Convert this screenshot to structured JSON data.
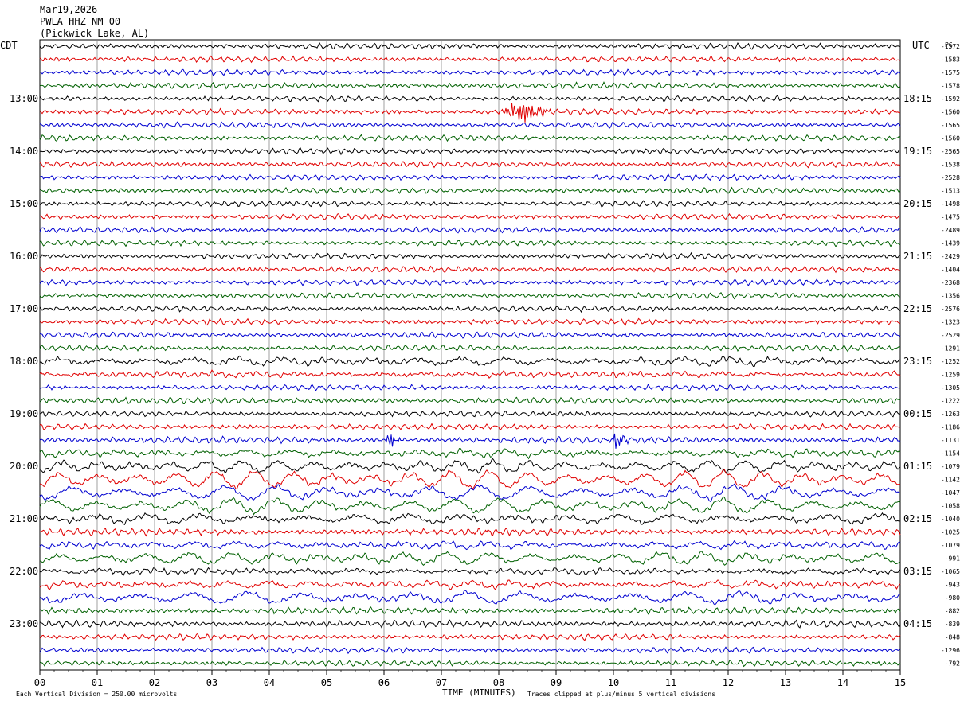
{
  "header": {
    "date": "Mar19,2026",
    "station": "PWLA HHZ NM 00",
    "location": "(Pickwick Lake, AL)"
  },
  "left_timezone": "CDT",
  "right_timezone": "UTC",
  "right_corner_label": "PG",
  "footer": {
    "scale_note": "Each Vertical Division =  250.00 microvolts",
    "clip_note": "Traces clipped at plus/minus 5 vertical divisions",
    "xlabel": "TIME (MINUTES)"
  },
  "chart_data": {
    "type": "line",
    "xlabel": "TIME (MINUTES)",
    "x_ticks": [
      "00",
      "01",
      "02",
      "03",
      "04",
      "05",
      "06",
      "07",
      "08",
      "09",
      "10",
      "11",
      "12",
      "13",
      "14",
      "15"
    ],
    "xlim": [
      0,
      15
    ],
    "rows": 48,
    "trace_colors": [
      "#000000",
      "#e00000",
      "#0000d0",
      "#006000"
    ],
    "left_hour_labels": [
      "13:00",
      "14:00",
      "15:00",
      "16:00",
      "17:00",
      "18:00",
      "19:00",
      "20:00",
      "21:00",
      "22:00",
      "23:00"
    ],
    "left_hour_rows": [
      4,
      8,
      12,
      16,
      20,
      24,
      28,
      32,
      36,
      40,
      44
    ],
    "right_hour_labels": [
      "18:15",
      "19:15",
      "20:15",
      "21:15",
      "22:15",
      "23:15",
      "00:15",
      "01:15",
      "02:15",
      "03:15",
      "04:15"
    ],
    "right_row_labels": [
      "-1572",
      "-1583",
      "-1575",
      "-1578",
      "-1592",
      "-1560",
      "-1565",
      "-1560",
      "-2565",
      "-1538",
      "-2528",
      "-1513",
      "-1498",
      "-1475",
      "-2489",
      "-1439",
      "-2429",
      "-1404",
      "-2368",
      "-1356",
      "-2576",
      "-1323",
      "-2529",
      "-1291",
      "-1252",
      "-1259",
      "-1305",
      "-1222",
      "-1263",
      "-1186",
      "-1131",
      "-1154",
      "-1079",
      "-1142",
      "-1047",
      "-1058",
      "-1040",
      "-1025",
      "-1079",
      "-991",
      "-1065",
      "-943",
      "-980",
      "-882",
      "-839",
      "-848",
      "-1296",
      "-792"
    ],
    "row_amplitude": [
      1,
      1,
      1,
      1,
      1,
      1,
      1,
      1,
      1,
      1,
      1,
      1,
      1,
      1,
      1,
      1,
      1,
      1,
      1,
      1,
      1,
      1,
      1,
      1,
      2.2,
      1.5,
      1,
      1.1,
      1,
      1,
      1.2,
      2,
      3,
      4,
      3.5,
      3.5,
      2.5,
      1.2,
      2,
      3,
      1.6,
      2,
      3,
      1.2,
      1.2,
      1,
      1,
      1
    ],
    "events": [
      {
        "row": 5,
        "start_min": 8.0,
        "end_min": 9.0,
        "amplitude": 3.5
      },
      {
        "row": 30,
        "start_min": 6.0,
        "end_min": 6.3,
        "amplitude": 2.0
      },
      {
        "row": 30,
        "start_min": 9.9,
        "end_min": 10.3,
        "amplitude": 2.5
      }
    ]
  }
}
